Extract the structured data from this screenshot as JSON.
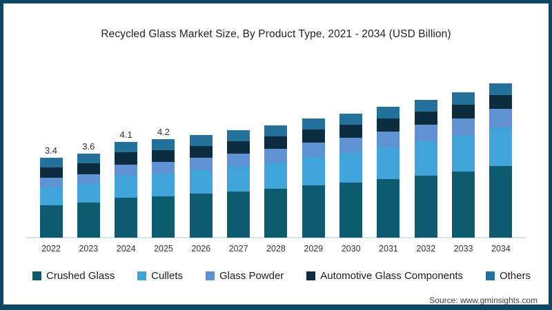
{
  "title": "Recycled Glass Market Size, By Product Type, 2021 - 2034 (USD Billion)",
  "source": "Source: www.gminsights.com",
  "colors": {
    "frame_border": "#0d4763",
    "axis_line": "#d7e2e9",
    "crushed_glass": "#0e5a6f",
    "cullets": "#41a4da",
    "glass_powder": "#5e92d2",
    "automotive_glass_components": "#0b2d3f",
    "others": "#24719b"
  },
  "chart_data": {
    "type": "bar",
    "stacked": true,
    "grid": false,
    "legend_position": "bottom",
    "xlabel": "",
    "ylabel": "",
    "ylim": [
      0,
      7
    ],
    "categories": [
      "2022",
      "2023",
      "2024",
      "2025",
      "2026",
      "2027",
      "2028",
      "2029",
      "2030",
      "2031",
      "2032",
      "2033",
      "2034"
    ],
    "totals": [
      3.4,
      3.6,
      4.1,
      4.2,
      4.4,
      4.6,
      4.8,
      5.1,
      5.3,
      5.6,
      5.9,
      6.2,
      6.6
    ],
    "bar_value_labels": [
      "3.4",
      "3.6",
      "4.1",
      "4.2",
      "",
      "",
      "",
      "",
      "",
      "",
      "",
      "",
      ""
    ],
    "series": [
      {
        "name": "Crushed Glass",
        "color": "#0e5a6f",
        "values": [
          1.39,
          1.49,
          1.72,
          1.77,
          1.88,
          1.98,
          2.09,
          2.24,
          2.35,
          2.51,
          2.66,
          2.83,
          3.05
        ]
      },
      {
        "name": "Cullets",
        "color": "#41a4da",
        "values": [
          0.75,
          0.8,
          0.92,
          0.96,
          1.01,
          1.07,
          1.13,
          1.21,
          1.27,
          1.36,
          1.45,
          1.53,
          1.65
        ]
      },
      {
        "name": "Glass Powder",
        "color": "#5e92d2",
        "values": [
          0.41,
          0.43,
          0.49,
          0.5,
          0.53,
          0.55,
          0.58,
          0.62,
          0.64,
          0.67,
          0.71,
          0.74,
          0.8
        ]
      },
      {
        "name": "Automotive Glass Components",
        "color": "#0b2d3f",
        "values": [
          0.44,
          0.46,
          0.51,
          0.5,
          0.51,
          0.52,
          0.53,
          0.54,
          0.55,
          0.56,
          0.57,
          0.58,
          0.6
        ]
      },
      {
        "name": "Others",
        "color": "#24719b",
        "values": [
          0.41,
          0.42,
          0.46,
          0.47,
          0.47,
          0.48,
          0.47,
          0.49,
          0.49,
          0.5,
          0.51,
          0.52,
          0.5
        ]
      }
    ]
  }
}
